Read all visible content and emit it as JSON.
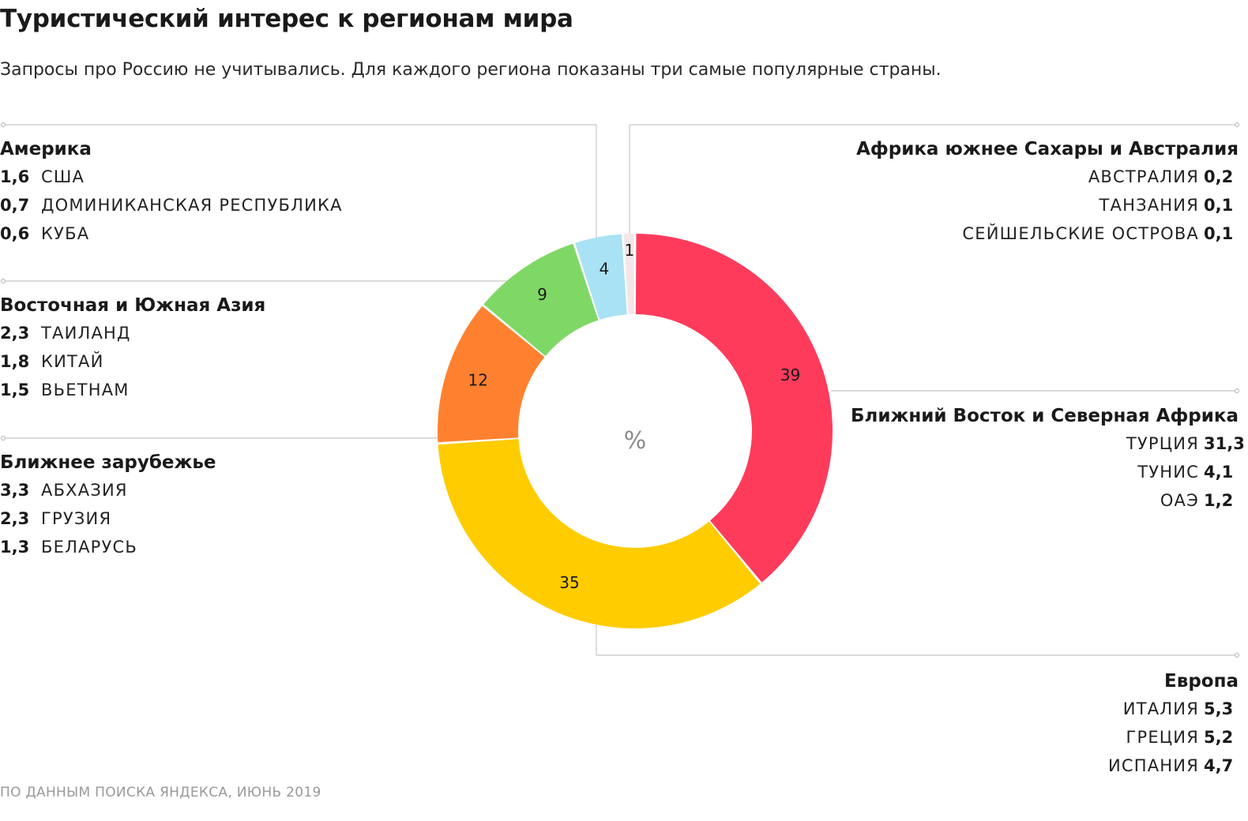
{
  "title": "Туристический интерес к регионам мира",
  "subtitle": "Запросы про Россию не учитывались. Для каждого региона показаны три самые популярные страны.",
  "source": "ПО ДАННЫМ ПОИСКА ЯНДЕКСА, ИЮНЬ 2019",
  "center_label": "%",
  "regions": [
    {
      "name": "Америка",
      "side": "left",
      "countries": [
        {
          "value": "1,6",
          "name": "США"
        },
        {
          "value": "0,7",
          "name": "ДОМИНИКАНСКАЯ РЕСПУБЛИКА"
        },
        {
          "value": "0,6",
          "name": "КУБА"
        }
      ]
    },
    {
      "name": "Восточная и Южная Азия",
      "side": "left",
      "countries": [
        {
          "value": "2,3",
          "name": "ТАИЛАНД"
        },
        {
          "value": "1,8",
          "name": "КИТАЙ"
        },
        {
          "value": "1,5",
          "name": "ВЬЕТНАМ"
        }
      ]
    },
    {
      "name": "Ближнее зарубежье",
      "side": "left",
      "countries": [
        {
          "value": "3,3",
          "name": "АБХАЗИЯ"
        },
        {
          "value": "2,3",
          "name": "ГРУЗИЯ"
        },
        {
          "value": "1,3",
          "name": "БЕЛАРУСЬ"
        }
      ]
    },
    {
      "name": "Африка южнее Сахары и Австралия",
      "side": "right",
      "countries": [
        {
          "value": "0,2",
          "name": "АВСТРАЛИЯ"
        },
        {
          "value": "0,1",
          "name": "ТАНЗАНИЯ"
        },
        {
          "value": "0,1",
          "name": "СЕЙШЕЛЬСКИЕ ОСТРОВА"
        }
      ]
    },
    {
      "name": "Ближний Восток и Северная Африка",
      "side": "right",
      "countries": [
        {
          "value": "31,3",
          "name": "ТУРЦИЯ"
        },
        {
          "value": "4,1",
          "name": "ТУНИС"
        },
        {
          "value": "1,2",
          "name": "ОАЭ"
        }
      ]
    },
    {
      "name": "Европа",
      "side": "right",
      "countries": [
        {
          "value": "5,3",
          "name": "ИТАЛИЯ"
        },
        {
          "value": "5,2",
          "name": "ГРЕЦИЯ"
        },
        {
          "value": "4,7",
          "name": "ИСПАНИЯ"
        }
      ]
    }
  ],
  "chart_data": {
    "type": "pie",
    "categories": [
      "Ближний Восток и Северная Африка",
      "Европа",
      "Ближнее зарубежье",
      "Восточная и Южная Азия",
      "Америка",
      "Африка южнее Сахары и Австралия"
    ],
    "values": [
      39,
      35,
      12,
      9,
      4,
      1
    ],
    "labels": [
      "39",
      "35",
      "12",
      "9",
      "4",
      "1"
    ],
    "colors": [
      "#ff3b5c",
      "#ffcc00",
      "#ff8130",
      "#7fd865",
      "#a8e2f4",
      "#f3e5e8"
    ],
    "donut": true
  }
}
